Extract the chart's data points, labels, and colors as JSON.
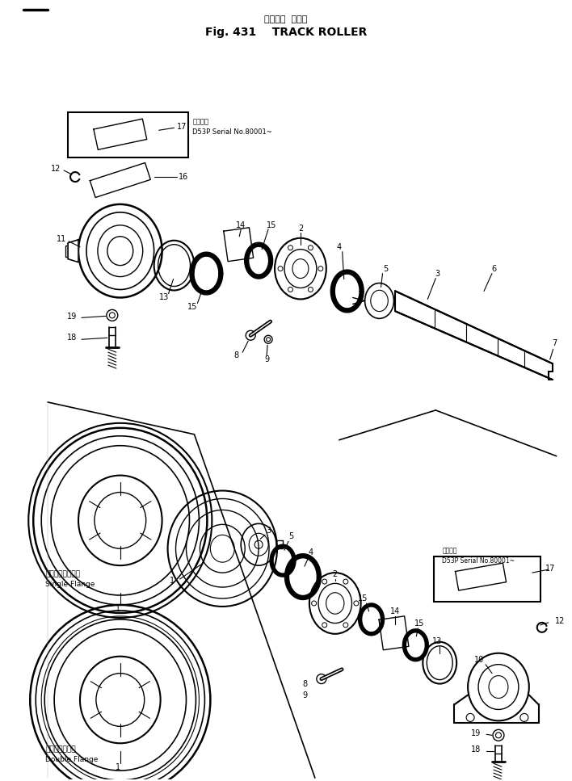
{
  "title_japanese": "トラック  ローラ",
  "title_english": "Fig. 431    TRACK ROLLER",
  "background_color": "#ffffff",
  "line_color": "#000000",
  "text_color": "#000000",
  "fig_width": 7.08,
  "fig_height": 9.67,
  "dpi": 100,
  "serial_note_top_line1": "適用番号",
  "serial_note_top_line2": "D53P Serial No.80001~",
  "serial_note_bot_line1": "適用番号",
  "serial_note_bot_line2": "D53P Serial No.80001~",
  "label_single_flange_jp": "シングルフランジ",
  "label_single_flange_en": "Single Flange",
  "label_double_flange_jp": "ダブルフランジ",
  "label_double_flange_en": "Double Flange"
}
